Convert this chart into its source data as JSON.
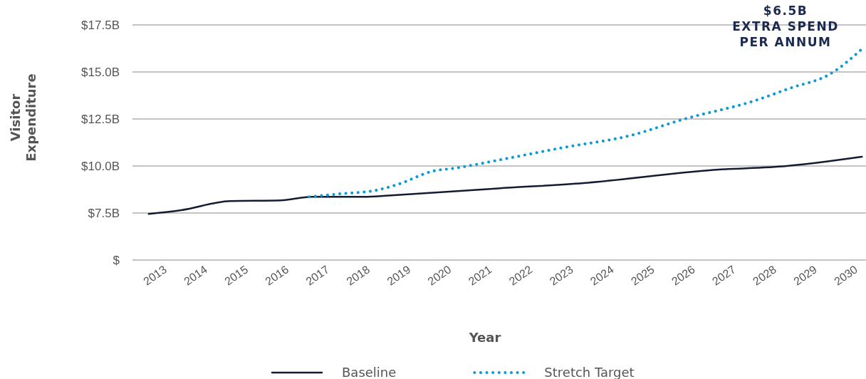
{
  "chart_data": {
    "type": "line",
    "xlabel": "Year",
    "ylabel": "Visitor Expenditure",
    "xlim": [
      2012.4,
      2030.45
    ],
    "xticks": [
      2013,
      2014,
      2015,
      2016,
      2017,
      2018,
      2019,
      2020,
      2021,
      2022,
      2023,
      2024,
      2025,
      2026,
      2027,
      2028,
      2029,
      2030
    ],
    "ylim": [
      5,
      17.5
    ],
    "yticks": [
      {
        "value": 5,
        "label": "$"
      },
      {
        "value": 7.5,
        "label": "$7.5B"
      },
      {
        "value": 10,
        "label": "$10.0B"
      },
      {
        "value": 12.5,
        "label": "$12.5B"
      },
      {
        "value": 15,
        "label": "$15.0B"
      },
      {
        "value": 17.5,
        "label": "$17.5B"
      }
    ],
    "grid": "y",
    "legend": "bottom",
    "annotations": [
      "$6.5B\nEXTRA SPEND\nPER ANNUM"
    ],
    "series": [
      {
        "name": "Baseline",
        "color": "#141c33",
        "line_style": "solid",
        "x": [
          2012.8,
          2013.6,
          2014.8,
          2016.05,
          2016.8,
          2018.1,
          2018.7,
          2021.4,
          2023.5,
          2026.7,
          2028.5,
          2030.35
        ],
        "values": [
          7.45,
          7.65,
          8.13,
          8.17,
          8.36,
          8.36,
          8.43,
          8.81,
          9.09,
          9.79,
          10.0,
          10.49
        ]
      },
      {
        "name": "Stretch Target",
        "color": "#0a9bd6",
        "line_style": "dotted",
        "x": [
          2016.75,
          2017.5,
          2018.35,
          2018.9,
          2019.8,
          2020.35,
          2021.35,
          2023.0,
          2024.65,
          2026.0,
          2027.65,
          2028.6,
          2029.55,
          2030.4
        ],
        "values": [
          8.36,
          8.52,
          8.69,
          9.0,
          9.73,
          9.89,
          10.29,
          10.98,
          11.62,
          12.51,
          13.43,
          14.15,
          14.87,
          16.32
        ]
      }
    ]
  }
}
